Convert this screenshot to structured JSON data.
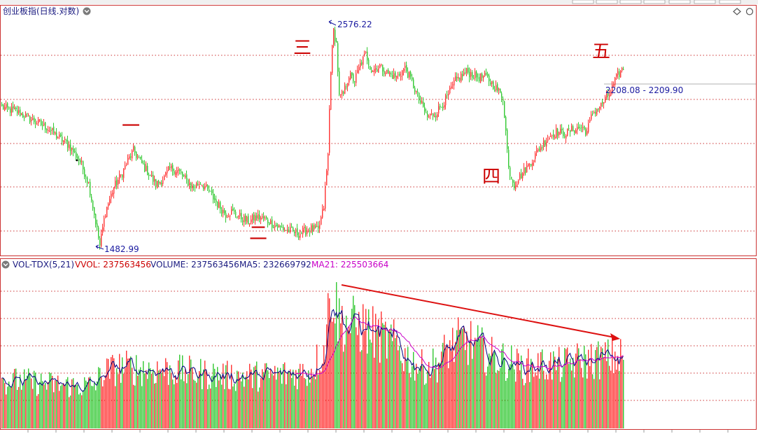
{
  "price_panel": {
    "title": "创业板指(日线.对数)",
    "high_label": "2576.22",
    "low_label": "1482.99",
    "current_range": "2208.08 - 2209.90",
    "wave_labels": [
      "一",
      "二",
      "三",
      "四",
      "五"
    ]
  },
  "volume_panel": {
    "indicator_name": "VOL-TDX(5,21)",
    "vvol": "VVOL: 237563456",
    "volume": "VOLUME: 237563456",
    "ma5": "MA5: 232669792",
    "ma21": "MA21: 225503664"
  },
  "colors": {
    "up": "#ff3232",
    "down": "#32c832",
    "ma5": "#000080",
    "ma21": "#c800c8",
    "grid": "#cc3333",
    "label_blue": "#1a1aa0",
    "wave_red": "#cc0000"
  },
  "chart_data": [
    {
      "type": "candlestick",
      "scale": "log",
      "title": "创业板指(日线.对数)",
      "annotations": [
        {
          "text": "2576.22",
          "kind": "high_marker"
        },
        {
          "text": "1482.99",
          "kind": "low_marker"
        },
        {
          "text": "2208.08 - 2209.90",
          "kind": "price_level"
        }
      ],
      "wave_labels": [
        "一",
        "二",
        "三",
        "四",
        "五"
      ],
      "close_path": [
        [
          0,
          2090
        ],
        [
          10,
          2070
        ],
        [
          22,
          2025
        ],
        [
          32,
          1990
        ],
        [
          40,
          1945
        ],
        [
          48,
          1905
        ],
        [
          56,
          1830
        ],
        [
          62,
          1735
        ],
        [
          66,
          1610
        ],
        [
          70,
          1490
        ],
        [
          74,
          1620
        ],
        [
          80,
          1720
        ],
        [
          86,
          1780
        ],
        [
          90,
          1835
        ],
        [
          94,
          1880
        ],
        [
          100,
          1820
        ],
        [
          106,
          1770
        ],
        [
          110,
          1730
        ],
        [
          116,
          1760
        ],
        [
          120,
          1800
        ],
        [
          126,
          1790
        ],
        [
          130,
          1760
        ],
        [
          136,
          1720
        ],
        [
          142,
          1740
        ],
        [
          148,
          1700
        ],
        [
          154,
          1650
        ],
        [
          160,
          1610
        ],
        [
          164,
          1620
        ],
        [
          170,
          1600
        ],
        [
          176,
          1580
        ],
        [
          182,
          1600
        ],
        [
          188,
          1590
        ],
        [
          194,
          1570
        ],
        [
          200,
          1555
        ],
        [
          206,
          1545
        ],
        [
          212,
          1535
        ],
        [
          218,
          1550
        ],
        [
          222,
          1555
        ],
        [
          226,
          1545
        ],
        [
          230,
          1640
        ],
        [
          233,
          1860
        ],
        [
          235,
          2300
        ],
        [
          237,
          2520
        ],
        [
          239,
          2440
        ],
        [
          241,
          2140
        ],
        [
          244,
          2160
        ],
        [
          248,
          2260
        ],
        [
          252,
          2230
        ],
        [
          256,
          2320
        ],
        [
          260,
          2380
        ],
        [
          264,
          2290
        ],
        [
          270,
          2310
        ],
        [
          276,
          2270
        ],
        [
          282,
          2250
        ],
        [
          288,
          2300
        ],
        [
          292,
          2240
        ],
        [
          298,
          2130
        ],
        [
          304,
          2040
        ],
        [
          310,
          2060
        ],
        [
          318,
          2140
        ],
        [
          324,
          2230
        ],
        [
          332,
          2280
        ],
        [
          340,
          2250
        ],
        [
          346,
          2250
        ],
        [
          352,
          2200
        ],
        [
          358,
          2140
        ],
        [
          362,
          1800
        ],
        [
          366,
          1730
        ],
        [
          372,
          1780
        ],
        [
          378,
          1830
        ],
        [
          384,
          1890
        ],
        [
          390,
          1940
        ],
        [
          396,
          1970
        ],
        [
          402,
          1960
        ],
        [
          408,
          1980
        ],
        [
          414,
          1990
        ],
        [
          418,
          1970
        ],
        [
          422,
          2060
        ],
        [
          428,
          2100
        ],
        [
          434,
          2160
        ],
        [
          440,
          2260
        ],
        [
          444,
          2300
        ]
      ]
    },
    {
      "type": "bar",
      "title": "VOL-TDX(5,21)",
      "series": [
        {
          "name": "VVOL",
          "value": 237563456
        },
        {
          "name": "VOLUME",
          "value": 237563456
        },
        {
          "name": "MA5",
          "value": 232669792
        },
        {
          "name": "MA21",
          "value": 225503664
        }
      ],
      "volume_path": [
        [
          0,
          330
        ],
        [
          20,
          320
        ],
        [
          40,
          300
        ],
        [
          56,
          290
        ],
        [
          66,
          300
        ],
        [
          72,
          380
        ],
        [
          84,
          420
        ],
        [
          100,
          410
        ],
        [
          120,
          400
        ],
        [
          140,
          380
        ],
        [
          160,
          360
        ],
        [
          180,
          360
        ],
        [
          200,
          370
        ],
        [
          220,
          390
        ],
        [
          230,
          540
        ],
        [
          233,
          780
        ],
        [
          235,
          1000
        ],
        [
          238,
          850
        ],
        [
          242,
          740
        ],
        [
          250,
          710
        ],
        [
          258,
          700
        ],
        [
          265,
          660
        ],
        [
          274,
          610
        ],
        [
          282,
          570
        ],
        [
          290,
          480
        ],
        [
          300,
          420
        ],
        [
          310,
          440
        ],
        [
          320,
          560
        ],
        [
          330,
          610
        ],
        [
          340,
          560
        ],
        [
          350,
          490
        ],
        [
          362,
          460
        ],
        [
          370,
          420
        ],
        [
          380,
          430
        ],
        [
          390,
          440
        ],
        [
          400,
          430
        ],
        [
          410,
          460
        ],
        [
          420,
          470
        ],
        [
          430,
          480
        ],
        [
          444,
          490
        ]
      ],
      "ma21_start": 210
    }
  ]
}
